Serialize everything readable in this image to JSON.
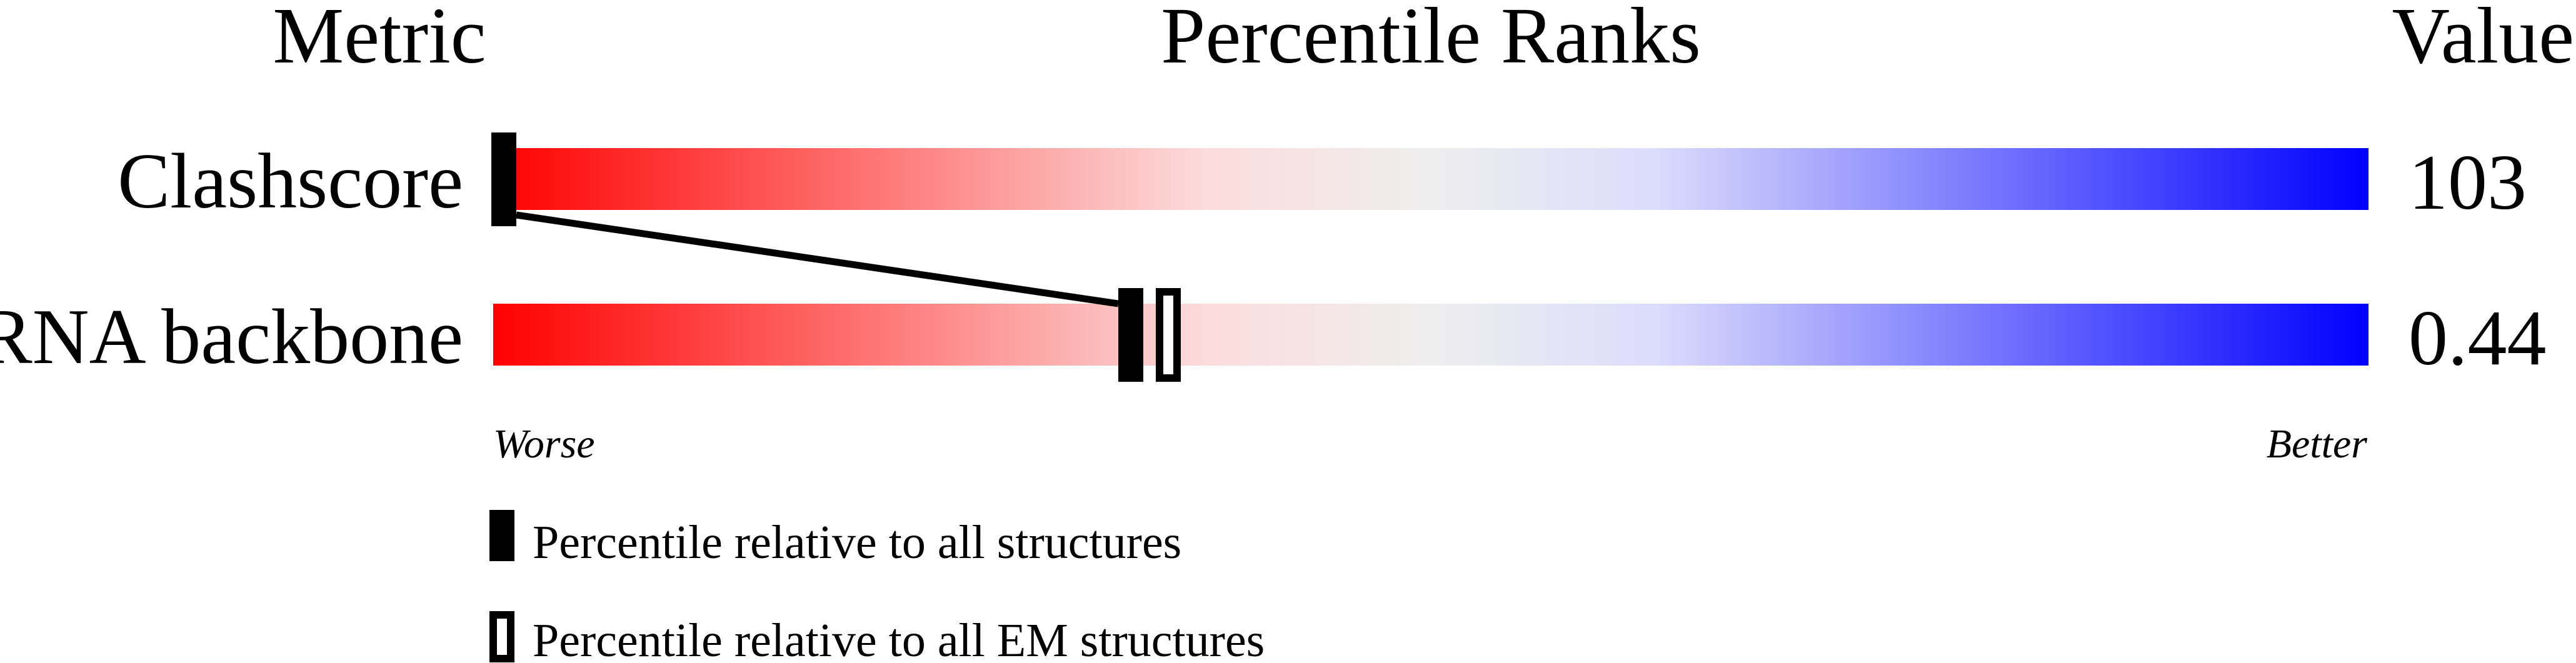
{
  "chart_data": {
    "type": "percentile-bar",
    "headers": {
      "metric": "Metric",
      "ranks": "Percentile Ranks",
      "value": "Value"
    },
    "scale_labels": {
      "left": "Worse",
      "right": "Better"
    },
    "xlim": [
      0,
      100
    ],
    "gradient_colors": [
      "#ff0000",
      "#fcdcdc",
      "#eeeeee",
      "#dcdcfc",
      "#0000ff"
    ],
    "rows": [
      {
        "metric": "Clashscore",
        "value": "103",
        "percentile_all": 0,
        "percentile_em": null
      },
      {
        "metric": "RNA backbone",
        "value": "0.44",
        "percentile_all": 34,
        "percentile_em": 36
      }
    ],
    "legend": [
      {
        "marker": "filled",
        "label": "Percentile relative to all structures"
      },
      {
        "marker": "open",
        "label": "Percentile relative to all EM structures"
      }
    ]
  }
}
